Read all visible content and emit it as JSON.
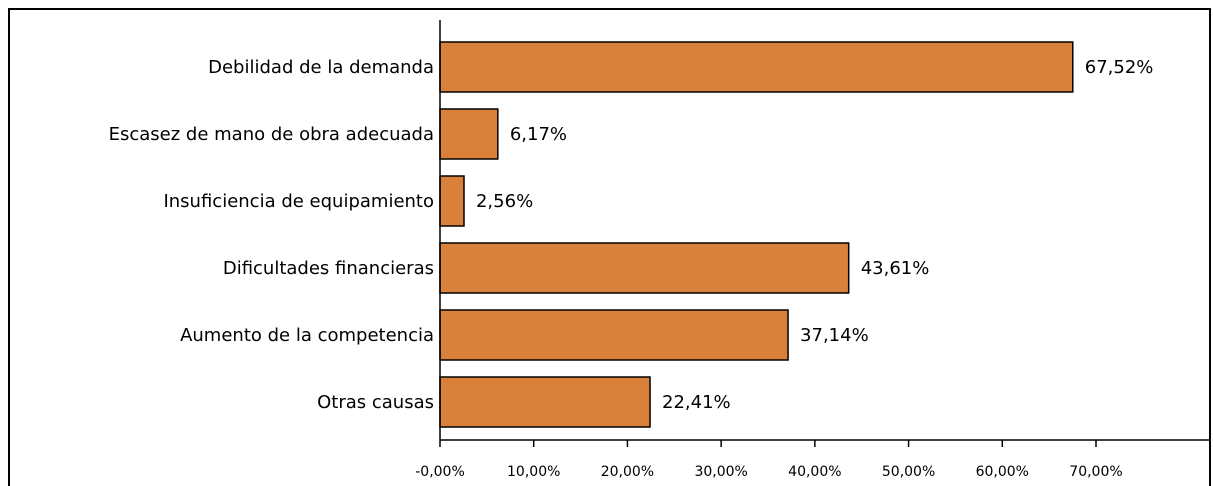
{
  "chart_data": {
    "type": "bar",
    "orientation": "horizontal",
    "title": "",
    "xlabel": "",
    "ylabel": "",
    "categories": [
      "Debilidad de la demanda",
      "Escasez de mano de obra adecuada",
      "Insuficiencia de equipamiento",
      "Dificultades financieras",
      "Aumento de la competencia",
      "Otras causas"
    ],
    "values": [
      67.52,
      6.17,
      2.56,
      43.61,
      37.14,
      22.41
    ],
    "value_labels": [
      "67,52%",
      "6,17%",
      "2,56%",
      "43,61%",
      "37,14%",
      "22,41%"
    ],
    "xlim": [
      0,
      82
    ],
    "xticks": [
      0,
      10,
      20,
      30,
      40,
      50,
      60,
      70
    ],
    "xtick_labels": [
      "-0,00%",
      "10,00%",
      "20,00%",
      "30,00%",
      "40,00%",
      "50,00%",
      "60,00%",
      "70,00%"
    ],
    "grid": false,
    "legend": "none",
    "bar_color": "#d9803a",
    "bar_border_color": "#000000"
  }
}
